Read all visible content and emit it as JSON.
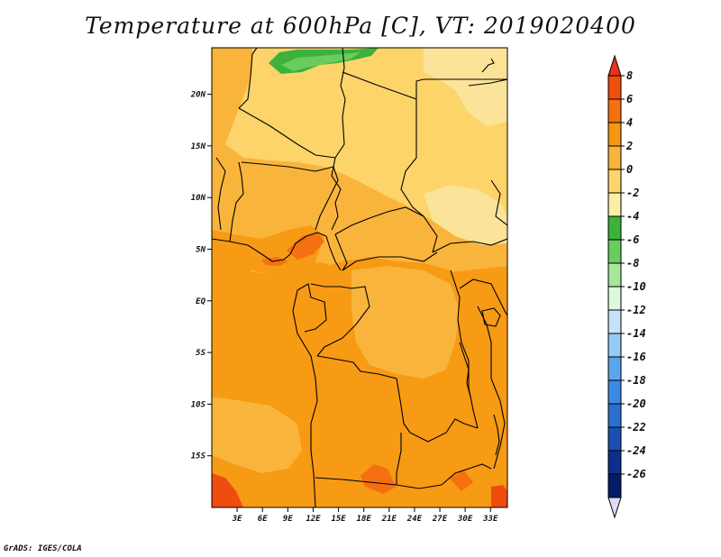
{
  "title": "Temperature at 600hPa [C], VT: 2019020400",
  "footer": "GrADS: IGES/COLA",
  "map": {
    "lat_ticks": [
      "20N",
      "15N",
      "10N",
      "5N",
      "EQ",
      "5S",
      "10S",
      "15S"
    ],
    "lon_ticks": [
      "3E",
      "6E",
      "9E",
      "12E",
      "15E",
      "18E",
      "21E",
      "24E",
      "27E",
      "30E",
      "33E"
    ],
    "lon_range": [
      0,
      35
    ],
    "lat_range": [
      -20,
      24.5
    ]
  },
  "colorbar": {
    "labels": [
      "8",
      "6",
      "4",
      "2",
      "0",
      "-2",
      "-4",
      "-6",
      "-8",
      "-10",
      "-12",
      "-14",
      "-16",
      "-18",
      "-20",
      "-22",
      "-24",
      "-26"
    ],
    "colors": [
      "#e8321e",
      "#f04f0c",
      "#f57010",
      "#f5960f",
      "#f9b43c",
      "#fcd46a",
      "#fbeea6",
      "#3cb23c",
      "#69cc5c",
      "#a6e79a",
      "#def8de",
      "#c6e2f8",
      "#95cbf5",
      "#5ca5ea",
      "#3b8be2",
      "#2a70d0",
      "#1a4fb2",
      "#0d2e8c",
      "#061c6a",
      "#e0dcf5"
    ]
  },
  "colors": {
    "zone_orange": "#f79a14",
    "zone_light_orange": "#f9b43c",
    "zone_yellow": "#fcd46a",
    "zone_pale_yellow": "#fbe39a",
    "zone_green": "#3cb23c",
    "zone_light_green": "#69cc5c",
    "zone_deep_orange": "#f57010",
    "zone_red_orange": "#ef4d0f"
  }
}
